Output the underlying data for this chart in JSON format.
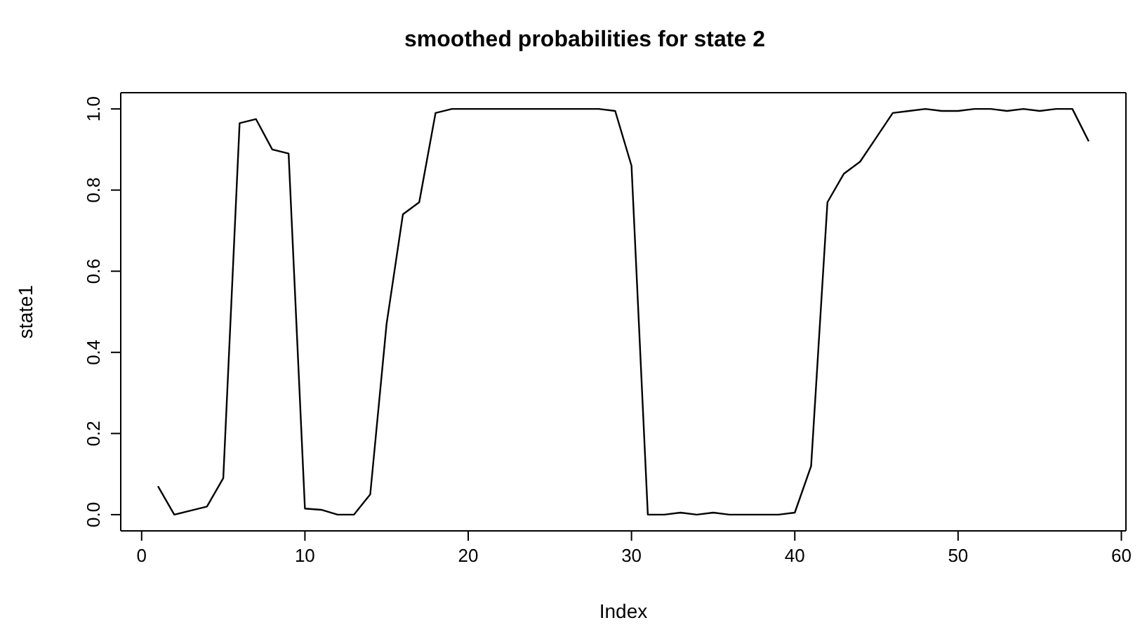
{
  "chart_data": {
    "type": "line",
    "title": "smoothed probabilities for state 2",
    "xlabel": "Index",
    "ylabel": "state1",
    "x": [
      1,
      2,
      3,
      4,
      5,
      6,
      7,
      8,
      9,
      10,
      11,
      12,
      13,
      14,
      15,
      16,
      17,
      18,
      19,
      20,
      21,
      22,
      23,
      24,
      25,
      26,
      27,
      28,
      29,
      30,
      31,
      32,
      33,
      34,
      35,
      36,
      37,
      38,
      39,
      40,
      41,
      42,
      43,
      44,
      45,
      46,
      47,
      48,
      49,
      50,
      51,
      52,
      53,
      54,
      55,
      56,
      57,
      58
    ],
    "series": [
      {
        "color": "#000000",
        "values": [
          0.07,
          0.0,
          0.01,
          0.02,
          0.09,
          0.965,
          0.975,
          0.9,
          0.89,
          0.015,
          0.012,
          0.0,
          0.0,
          0.05,
          0.47,
          0.74,
          0.77,
          0.99,
          1.0,
          1.0,
          1.0,
          1.0,
          1.0,
          1.0,
          1.0,
          1.0,
          1.0,
          1.0,
          0.995,
          0.86,
          0.0,
          0.0,
          0.005,
          0.0,
          0.005,
          0.0,
          0.0,
          0.0,
          0.0,
          0.005,
          0.12,
          0.77,
          0.84,
          0.87,
          0.93,
          0.99,
          0.995,
          1.0,
          0.995,
          0.995,
          1.0,
          1.0,
          0.995,
          1.0,
          0.995,
          1.0,
          1.0,
          0.92
        ]
      }
    ],
    "xlim": [
      -1.28,
      60.28
    ],
    "ylim": [
      -0.04,
      1.04
    ],
    "xticks": [
      0,
      10,
      20,
      30,
      40,
      50,
      60
    ],
    "yticks": [
      {
        "value": 0,
        "label": "0.0"
      },
      {
        "value": 0.2,
        "label": "0.2"
      },
      {
        "value": 0.4,
        "label": "0.4"
      },
      {
        "value": 0.6,
        "label": "0.6"
      },
      {
        "value": 0.8,
        "label": "0.8"
      },
      {
        "value": 1,
        "label": "1.0"
      }
    ],
    "grid": false,
    "legend": false,
    "marker": "none",
    "line_style": "solid"
  }
}
